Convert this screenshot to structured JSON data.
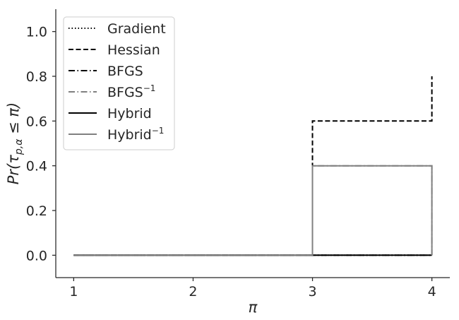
{
  "chart_data": {
    "type": "line",
    "title": "",
    "xlabel": "π",
    "ylabel": "Pr(τ_{p,α} ≤ π)",
    "xlim": [
      0.85,
      4.15
    ],
    "ylim": [
      -0.1,
      1.1
    ],
    "x_ticks": [
      1,
      2,
      3,
      4
    ],
    "x_tick_labels": [
      "1",
      "2",
      "3",
      "4"
    ],
    "y_ticks": [
      0.0,
      0.2,
      0.4,
      0.6,
      0.8,
      1.0
    ],
    "y_tick_labels": [
      "0.0",
      "0.2",
      "0.4",
      "0.6",
      "0.8",
      "1.0"
    ],
    "grid": false,
    "legend_position": "top-left",
    "series": [
      {
        "name": "Gradient",
        "base": "Gradient",
        "sup": "",
        "style": "dotted",
        "color": "#000000",
        "x": [
          1,
          3,
          3,
          4,
          4
        ],
        "y": [
          0.0,
          0.0,
          0.0,
          0.0,
          0.0
        ]
      },
      {
        "name": "Hessian",
        "base": "Hessian",
        "sup": "",
        "style": "dashed",
        "color": "#000000",
        "x": [
          1,
          3,
          3,
          4,
          4
        ],
        "y": [
          0.0,
          0.0,
          0.6,
          0.6,
          0.8
        ]
      },
      {
        "name": "BFGS",
        "base": "BFGS",
        "sup": "",
        "style": "dashdot",
        "color": "#000000",
        "x": [
          1,
          3,
          3,
          4,
          4
        ],
        "y": [
          0.0,
          0.0,
          0.0,
          0.0,
          0.0
        ]
      },
      {
        "name": "BFGS^-1",
        "base": "BFGS",
        "sup": "−1",
        "style": "dashdot",
        "color": "#808080",
        "x": [
          1,
          3,
          3,
          4,
          4
        ],
        "y": [
          0.0,
          0.0,
          0.4,
          0.4,
          0.0
        ]
      },
      {
        "name": "Hybrid",
        "base": "Hybrid",
        "sup": "",
        "style": "solid",
        "color": "#000000",
        "x": [
          1,
          3,
          3,
          4,
          4
        ],
        "y": [
          0.0,
          0.0,
          0.0,
          0.0,
          0.0
        ]
      },
      {
        "name": "Hybrid^-1",
        "base": "Hybrid",
        "sup": "−1",
        "style": "solid",
        "color": "#808080",
        "x": [
          1,
          3,
          3,
          4,
          4
        ],
        "y": [
          0.0,
          0.0,
          0.4,
          0.4,
          0.0
        ]
      }
    ]
  }
}
